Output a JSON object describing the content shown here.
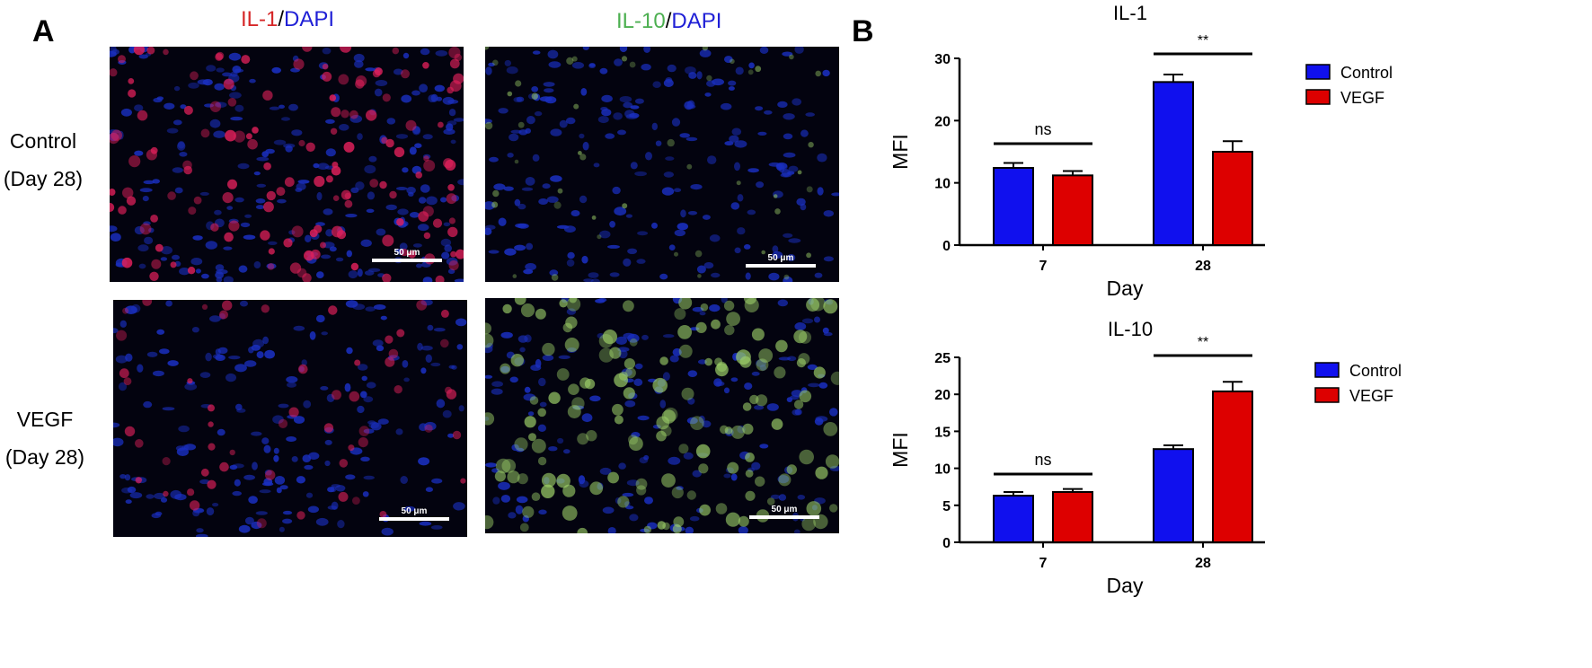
{
  "panels": {
    "a_letter": "A",
    "b_letter": "B"
  },
  "columns": [
    {
      "marker": "IL-1",
      "marker_color": "#d62728",
      "separator": "/",
      "stain": "DAPI",
      "stain_color": "#1f1fd6"
    },
    {
      "marker": "IL-10",
      "marker_color": "#4caf50",
      "separator": "/",
      "stain": "DAPI",
      "stain_color": "#1f1fd6"
    }
  ],
  "rows": [
    {
      "line1": "Control",
      "line2": "(Day 28)"
    },
    {
      "line1": "VEGF",
      "line2": "(Day 28)"
    }
  ],
  "scale_bar_label": "50 μm",
  "colors": {
    "control": "#1010ee",
    "vegf": "#dd0000",
    "background_tissue": "#03030f",
    "nuclei": "#1a2fbf",
    "il1_signal": "#e0205a",
    "il10_signal": "#9fd36a"
  },
  "chart_data": [
    {
      "type": "bar",
      "title": "IL-1",
      "xlabel": "Day",
      "ylabel": "MFI",
      "categories": [
        "7",
        "28"
      ],
      "ylim": [
        0,
        30
      ],
      "yticks": [
        0,
        10,
        20,
        30
      ],
      "series": [
        {
          "name": "Control",
          "color": "#1010ee",
          "values": [
            12.4,
            26.2
          ],
          "errors": [
            0.8,
            1.2
          ]
        },
        {
          "name": "VEGF",
          "color": "#dd0000",
          "values": [
            11.2,
            15.0
          ],
          "errors": [
            0.7,
            1.7
          ]
        }
      ],
      "significance": [
        "ns",
        "**"
      ],
      "legend": "right"
    },
    {
      "type": "bar",
      "title": "IL-10",
      "xlabel": "Day",
      "ylabel": "MFI",
      "categories": [
        "7",
        "28"
      ],
      "ylim": [
        0,
        25
      ],
      "yticks": [
        0,
        5,
        10,
        15,
        20,
        25
      ],
      "series": [
        {
          "name": "Control",
          "color": "#1010ee",
          "values": [
            6.3,
            12.6
          ],
          "errors": [
            0.5,
            0.5
          ]
        },
        {
          "name": "VEGF",
          "color": "#dd0000",
          "values": [
            6.8,
            20.4
          ],
          "errors": [
            0.4,
            1.3
          ]
        }
      ],
      "significance": [
        "ns",
        "**"
      ],
      "legend": "right"
    }
  ]
}
